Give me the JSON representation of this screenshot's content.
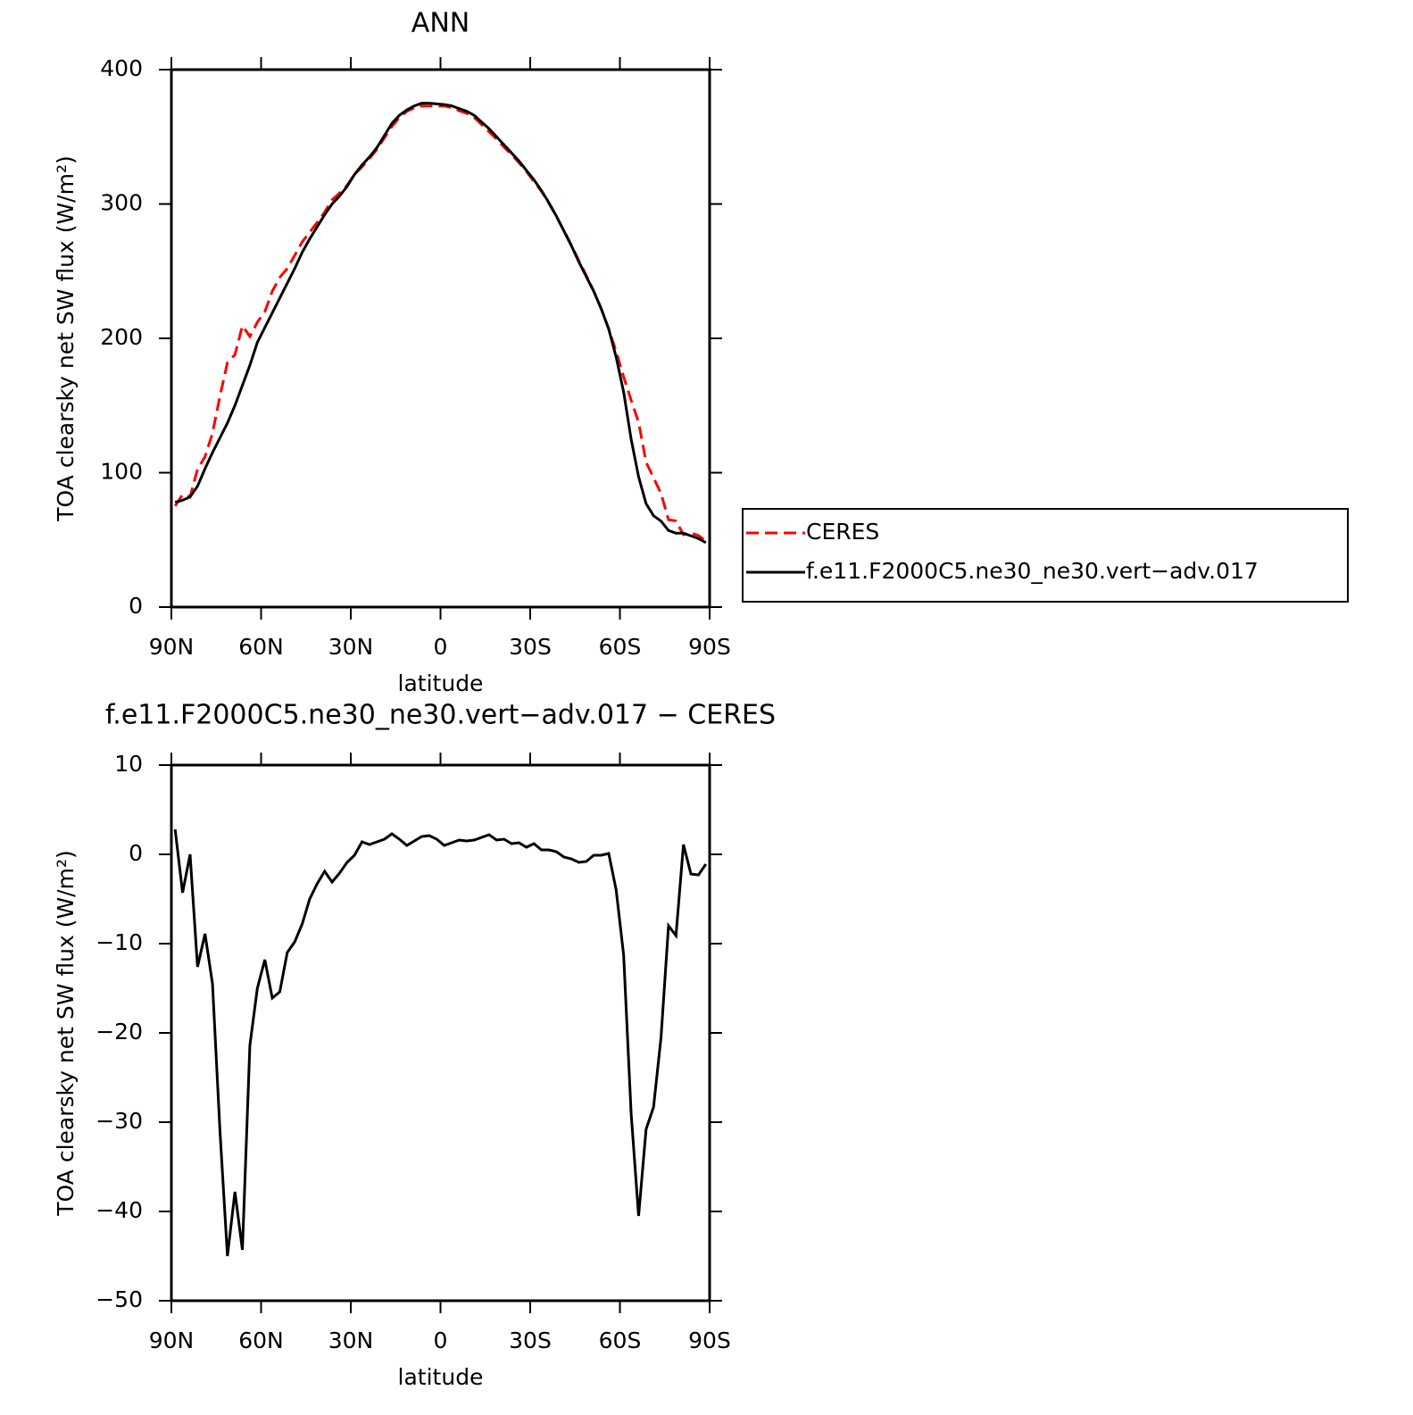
{
  "chart_data": [
    {
      "type": "line",
      "title": "ANN",
      "xlabel": "latitude",
      "ylabel": "TOA clearsky net SW flux (W/m²)",
      "x": [
        88.75,
        86.25,
        83.75,
        81.25,
        78.75,
        76.25,
        73.75,
        71.25,
        68.75,
        66.25,
        63.75,
        61.25,
        58.75,
        56.25,
        53.75,
        51.25,
        48.75,
        46.25,
        43.75,
        41.25,
        38.75,
        36.25,
        33.75,
        31.25,
        28.75,
        26.25,
        23.75,
        21.25,
        18.75,
        16.25,
        13.75,
        11.25,
        8.75,
        6.25,
        3.75,
        1.25,
        -1.25,
        -3.75,
        -6.25,
        -8.75,
        -11.25,
        -13.75,
        -16.25,
        -18.75,
        -21.25,
        -23.75,
        -26.25,
        -28.75,
        -31.25,
        -33.75,
        -36.25,
        -38.75,
        -41.25,
        -43.75,
        -46.25,
        -48.75,
        -51.25,
        -53.75,
        -56.25,
        -58.75,
        -61.25,
        -63.75,
        -66.25,
        -68.75,
        -71.25,
        -73.75,
        -76.25,
        -78.75,
        -81.25,
        -83.75,
        -86.25,
        -88.75
      ],
      "series": [
        {
          "name": "CERES",
          "color": "#ff0000",
          "line_style": "dashed",
          "values": [
            75.2,
            83.8,
            82,
            102.6,
            111.9,
            129.5,
            157,
            182,
            187.8,
            209.3,
            201.4,
            212,
            219.8,
            235.1,
            245.4,
            252,
            261.8,
            271.8,
            279,
            286.3,
            293.9,
            303.1,
            308.1,
            313.9,
            322.1,
            327.6,
            333.9,
            340.6,
            349.3,
            357.7,
            364.3,
            369,
            371.5,
            373,
            372.9,
            372.8,
            373,
            371.7,
            369.4,
            367.5,
            364.4,
            359.1,
            353.8,
            348.4,
            342.3,
            336.8,
            330.7,
            324.2,
            316.8,
            309.5,
            300.5,
            290.7,
            280.3,
            269.5,
            257.9,
            246.8,
            235.1,
            222.1,
            206.9,
            190,
            171.3,
            154,
            137.5,
            107.8,
            96.3,
            84.5,
            65,
            64.1,
            53.9,
            55.2,
            53.3,
            49.1
          ]
        },
        {
          "name": "f.e11.F2000C5.ne30_ne30.vert−adv.017",
          "color": "#000000",
          "line_style": "solid",
          "values": [
            78,
            79.5,
            82,
            90,
            103,
            115,
            126,
            137,
            150,
            165,
            180,
            197,
            208,
            219,
            230,
            241,
            252,
            264,
            274,
            283,
            292,
            300,
            306,
            313,
            322,
            329,
            335,
            342,
            351,
            360,
            366,
            370,
            373,
            375,
            375,
            374.5,
            374,
            373,
            371,
            369,
            366,
            361,
            356,
            350,
            344,
            338,
            332,
            325,
            318,
            310,
            301,
            291,
            280,
            269,
            257,
            246,
            235,
            222,
            207,
            186,
            160,
            125,
            97,
            77,
            68,
            64,
            57,
            55,
            55,
            53,
            51,
            48
          ]
        }
      ],
      "xlim": [
        90,
        -90
      ],
      "xticks": [
        {
          "value": 90,
          "label": "90N"
        },
        {
          "value": 60,
          "label": "60N"
        },
        {
          "value": 30,
          "label": "30N"
        },
        0,
        {
          "value": -30,
          "label": "30S"
        },
        {
          "value": -60,
          "label": "60S"
        },
        {
          "value": -90,
          "label": "90S"
        }
      ],
      "ylim": [
        0,
        400
      ],
      "yticks": [
        0,
        100,
        200,
        300,
        400
      ],
      "legend": "outside-right"
    },
    {
      "type": "line",
      "title": "f.e11.F2000C5.ne30_ne30.vert−adv.017 − CERES",
      "xlabel": "latitude",
      "ylabel": "TOA clearsky net SW flux (W/m²)",
      "x": [
        88.75,
        86.25,
        83.75,
        81.25,
        78.75,
        76.25,
        73.75,
        71.25,
        68.75,
        66.25,
        63.75,
        61.25,
        58.75,
        56.25,
        53.75,
        51.25,
        48.75,
        46.25,
        43.75,
        41.25,
        38.75,
        36.25,
        33.75,
        31.25,
        28.75,
        26.25,
        23.75,
        21.25,
        18.75,
        16.25,
        13.75,
        11.25,
        8.75,
        6.25,
        3.75,
        1.25,
        -1.25,
        -3.75,
        -6.25,
        -8.75,
        -11.25,
        -13.75,
        -16.25,
        -18.75,
        -21.25,
        -23.75,
        -26.25,
        -28.75,
        -31.25,
        -33.75,
        -36.25,
        -38.75,
        -41.25,
        -43.75,
        -46.25,
        -48.75,
        -51.25,
        -53.75,
        -56.25,
        -58.75,
        -61.25,
        -63.75,
        -66.25,
        -68.75,
        -71.25,
        -73.75,
        -76.25,
        -78.75,
        -81.25,
        -83.75,
        -86.25,
        -88.75
      ],
      "series": [
        {
          "color": "#000000",
          "line_style": "solid",
          "values": [
            2.8,
            -4.3,
            0,
            -12.6,
            -8.9,
            -14.5,
            -31,
            -45,
            -37.8,
            -44.3,
            -21.4,
            -15,
            -11.8,
            -16.1,
            -15.4,
            -11,
            -9.8,
            -7.8,
            -5,
            -3.3,
            -1.9,
            -3.1,
            -2.1,
            -0.9,
            -0.1,
            1.4,
            1.1,
            1.4,
            1.7,
            2.3,
            1.7,
            1.0,
            1.5,
            2.0,
            2.1,
            1.7,
            1.0,
            1.3,
            1.6,
            1.5,
            1.6,
            1.9,
            2.2,
            1.6,
            1.7,
            1.2,
            1.3,
            0.8,
            1.2,
            0.5,
            0.5,
            0.3,
            -0.3,
            -0.5,
            -0.9,
            -0.8,
            -0.1,
            -0.1,
            0.1,
            -4,
            -11.3,
            -29,
            -40.5,
            -30.8,
            -28.3,
            -20.5,
            -8,
            -9.1,
            1.1,
            -2.2,
            -2.3,
            -1.1
          ]
        }
      ],
      "xlim": [
        90,
        -90
      ],
      "xticks": [
        {
          "value": 90,
          "label": "90N"
        },
        {
          "value": 60,
          "label": "60N"
        },
        {
          "value": 30,
          "label": "30N"
        },
        0,
        {
          "value": -30,
          "label": "30S"
        },
        {
          "value": -60,
          "label": "60S"
        },
        {
          "value": -90,
          "label": "90S"
        }
      ],
      "ylim": [
        -50,
        10
      ],
      "yticks": [
        {
          "value": -50,
          "label": "−50"
        },
        {
          "value": -40,
          "label": "−40"
        },
        {
          "value": -30,
          "label": "−30"
        },
        {
          "value": -20,
          "label": "−20"
        },
        {
          "value": -10,
          "label": "−10"
        },
        0,
        10
      ]
    }
  ]
}
